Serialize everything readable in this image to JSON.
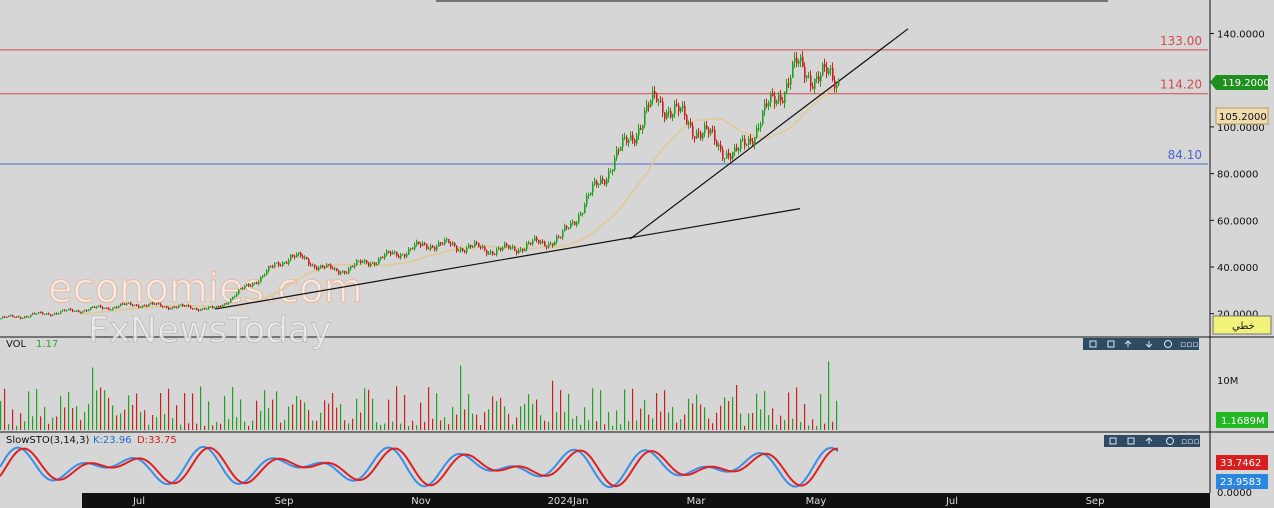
{
  "price_axis": {
    "ticks": [
      "140.0000",
      "100.0000",
      "80.0000",
      "60.0000",
      "40.0000",
      "20.0000"
    ],
    "badge_label": "خطي"
  },
  "volume_axis": {
    "ticks": [
      "10M"
    ]
  },
  "stoch_axis": {
    "ticks": [
      "0.0000"
    ]
  },
  "time_axis": {
    "labels": [
      "Jul",
      "Sep",
      "Nov",
      "2024Jan",
      "Mar",
      "May",
      "Jul",
      "Sep"
    ]
  },
  "watermark": {
    "line1": "economies.com",
    "line2": "FxNewsToday"
  },
  "colors": {
    "up": "#22a022",
    "down": "#cc2020",
    "hline_red": "#d24a4a",
    "hline_blue": "#4a66d6",
    "ma": "#e2c896",
    "stoch_k": "#3a8ee6",
    "stoch_d": "#e02020",
    "bg": "#d6d6d6"
  },
  "chart_data": [
    {
      "type": "candlestick",
      "panel": "price",
      "ylim": [
        15,
        150
      ],
      "horizontal_levels": [
        {
          "value": 133.0,
          "label": "133.00",
          "color": "red"
        },
        {
          "value": 114.2,
          "label": "114.20",
          "color": "red"
        },
        {
          "value": 84.1,
          "label": "84.10",
          "color": "blue"
        }
      ],
      "last_price": {
        "value": 119.2,
        "label": "119.2000"
      },
      "ma_value": {
        "value": 105.2,
        "label": "105.2000"
      },
      "key_closes": [
        {
          "date": "2023-05",
          "close": 18
        },
        {
          "date": "2023-07",
          "close": 24
        },
        {
          "date": "2023-08",
          "close": 22
        },
        {
          "date": "2023-09",
          "close": 45
        },
        {
          "date": "2023-10",
          "close": 38
        },
        {
          "date": "2023-11",
          "close": 50
        },
        {
          "date": "2023-12",
          "close": 47
        },
        {
          "date": "2024-01",
          "close": 52
        },
        {
          "date": "2024-02",
          "close": 112
        },
        {
          "date": "2024-03",
          "close": 87
        },
        {
          "date": "2024-04",
          "close": 125
        },
        {
          "date": "2024-05",
          "close": 119.2
        }
      ]
    },
    {
      "type": "bar",
      "panel": "volume",
      "label": "VOL",
      "label_value": "1.17",
      "last_value": "1.1689M"
    },
    {
      "type": "line",
      "panel": "oscillator",
      "label": "SlowSTO(3,14,3)",
      "k_label": "K:23.96",
      "d_label": "D:33.75",
      "ylim": [
        0,
        100
      ],
      "series": [
        {
          "name": "K",
          "last": "23.9583"
        },
        {
          "name": "D",
          "last": "33.7462"
        }
      ]
    }
  ]
}
